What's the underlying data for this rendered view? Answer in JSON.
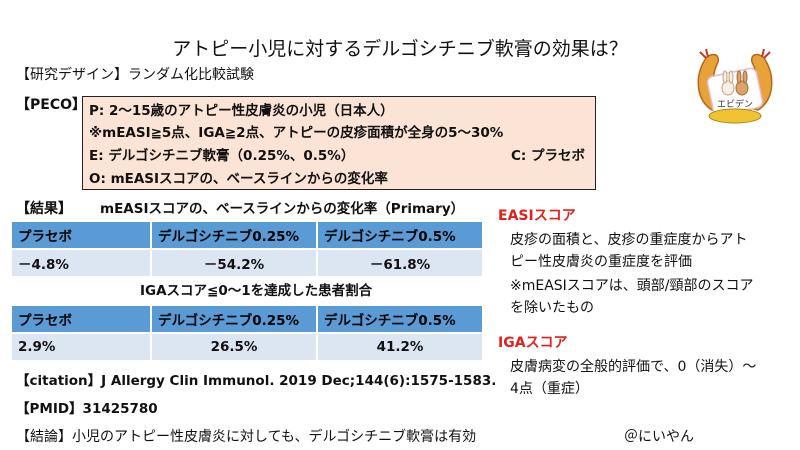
{
  "title": "アトピー小児に対するデルゴシチニブ軟膏の効果は？",
  "study_design": "【研究デザイン】ランダム化比較試験",
  "peco": {
    "label": "【PECO】",
    "p": "P: 2～15歳のアトピー性皮膚炎の小児（日本人）",
    "note": "※mEASI≧5点、IGA≧2点、アトピーの皮疹面積が全身の5～30%",
    "e": "E: デルゴシチニブ軟膏（0.25%、0.5%）",
    "c": "C: プラセボ",
    "o": "O: mEASIスコアの、ベースラインからの変化率"
  },
  "results": {
    "label": "【結果】",
    "table1_title": "mEASIスコアの、ベースラインからの変化率（Primary）",
    "table1_headers": [
      "プラセボ",
      "デルゴシチニブ0.25%",
      "デルゴシチニブ0.5%"
    ],
    "table1_values": [
      "－4.8%",
      "－54.2%",
      "－61.8%"
    ],
    "table2_title": "IGAスコア≦0～1を達成した患者割合",
    "table2_headers": [
      "プラセボ",
      "デルゴシチニブ0.25%",
      "デルゴシチニブ0.5%"
    ],
    "table2_values": [
      "2.9%",
      "26.5%",
      "41.2%"
    ]
  },
  "citation": "【citation】J Allergy Clin Immunol. 2019 Dec;144(6):1575-1583.",
  "pmid": "【PMID】31425780",
  "conclusion": "【結論】小児のアトピー性皮膚炎に対しても、デルゴシチニブ軟膏は有効",
  "author": "＠にいやん",
  "sidebar": {
    "easi_heading": "EASIスコア",
    "easi_desc_1": "皮疹の面積と、皮疹の重症度からアト",
    "easi_desc_2": "ピー性皮膚炎の重症度を評価",
    "measi_note_1": "※mEASIスコアは、頭部/頸部のスコア",
    "measi_note_2": "を除いたもの",
    "iga_heading": "IGAスコア",
    "iga_desc_1": "皮膚病変の全般的評価で、0（消失）～",
    "iga_desc_2": "4点（重症）"
  },
  "logo_text": "エビデン",
  "colors": {
    "accent_red": "#e0201b",
    "table_header": "#5b9bd5",
    "table_row": "#dce6f2",
    "peco_bg": "#fbe3d5"
  }
}
